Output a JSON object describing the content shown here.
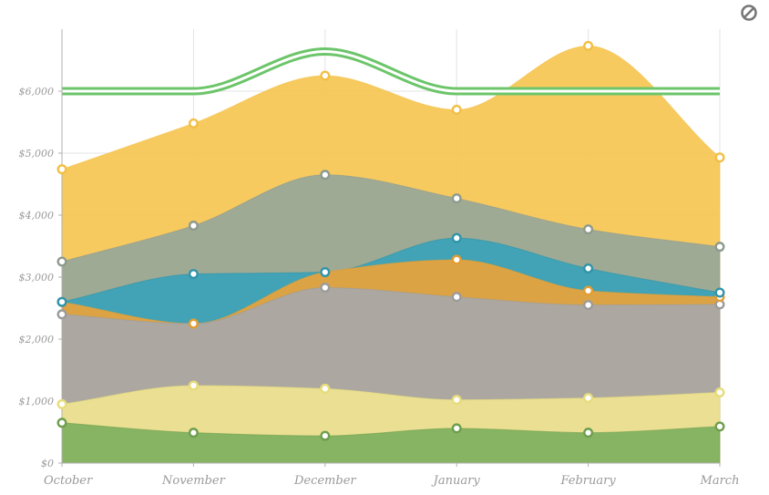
{
  "toolbar": {
    "icon": "ban-icon"
  },
  "chart_data": {
    "type": "area",
    "title": "",
    "xlabel": "",
    "ylabel": "",
    "categories": [
      "October",
      "November",
      "December",
      "January",
      "February",
      "March"
    ],
    "ylim": [
      0,
      7000
    ],
    "yticks": [
      "$0",
      "$1,000",
      "$2,000",
      "$3,000",
      "$4,000",
      "$5,000",
      "$6,000"
    ],
    "grid": true,
    "legend": "none",
    "series": [
      {
        "values": [
          650,
          490,
          440,
          560,
          490,
          590
        ],
        "fill": "#7fb05f",
        "point": "#6e9e4e"
      },
      {
        "values": [
          950,
          1250,
          1200,
          1020,
          1050,
          1140
        ],
        "fill": "#efe391",
        "point": "#e7dc7a"
      },
      {
        "values": [
          2400,
          2250,
          2830,
          2680,
          2550,
          2560
        ],
        "fill": "#a8a8a8",
        "point": "#9b9b9b"
      },
      {
        "values": [
          2600,
          2250,
          3080,
          3280,
          2780,
          2680
        ],
        "fill": "#e8a33c",
        "point": "#e39d32"
      },
      {
        "values": [
          2600,
          3050,
          3080,
          3630,
          3140,
          2750
        ],
        "fill": "#3aa2b8",
        "point": "#2f94aa"
      },
      {
        "values": [
          3250,
          3830,
          4650,
          4270,
          3770,
          3490
        ],
        "fill": "#98a898",
        "point": "#8d9a8d"
      },
      {
        "values": [
          4740,
          5480,
          6250,
          5700,
          6730,
          4930
        ],
        "fill": "#f6c654",
        "point": "#f2bf45"
      }
    ],
    "target_line": {
      "values": [
        6000,
        6000,
        6640,
        6000,
        6000,
        6000
      ],
      "color": "#6cc56a"
    }
  }
}
